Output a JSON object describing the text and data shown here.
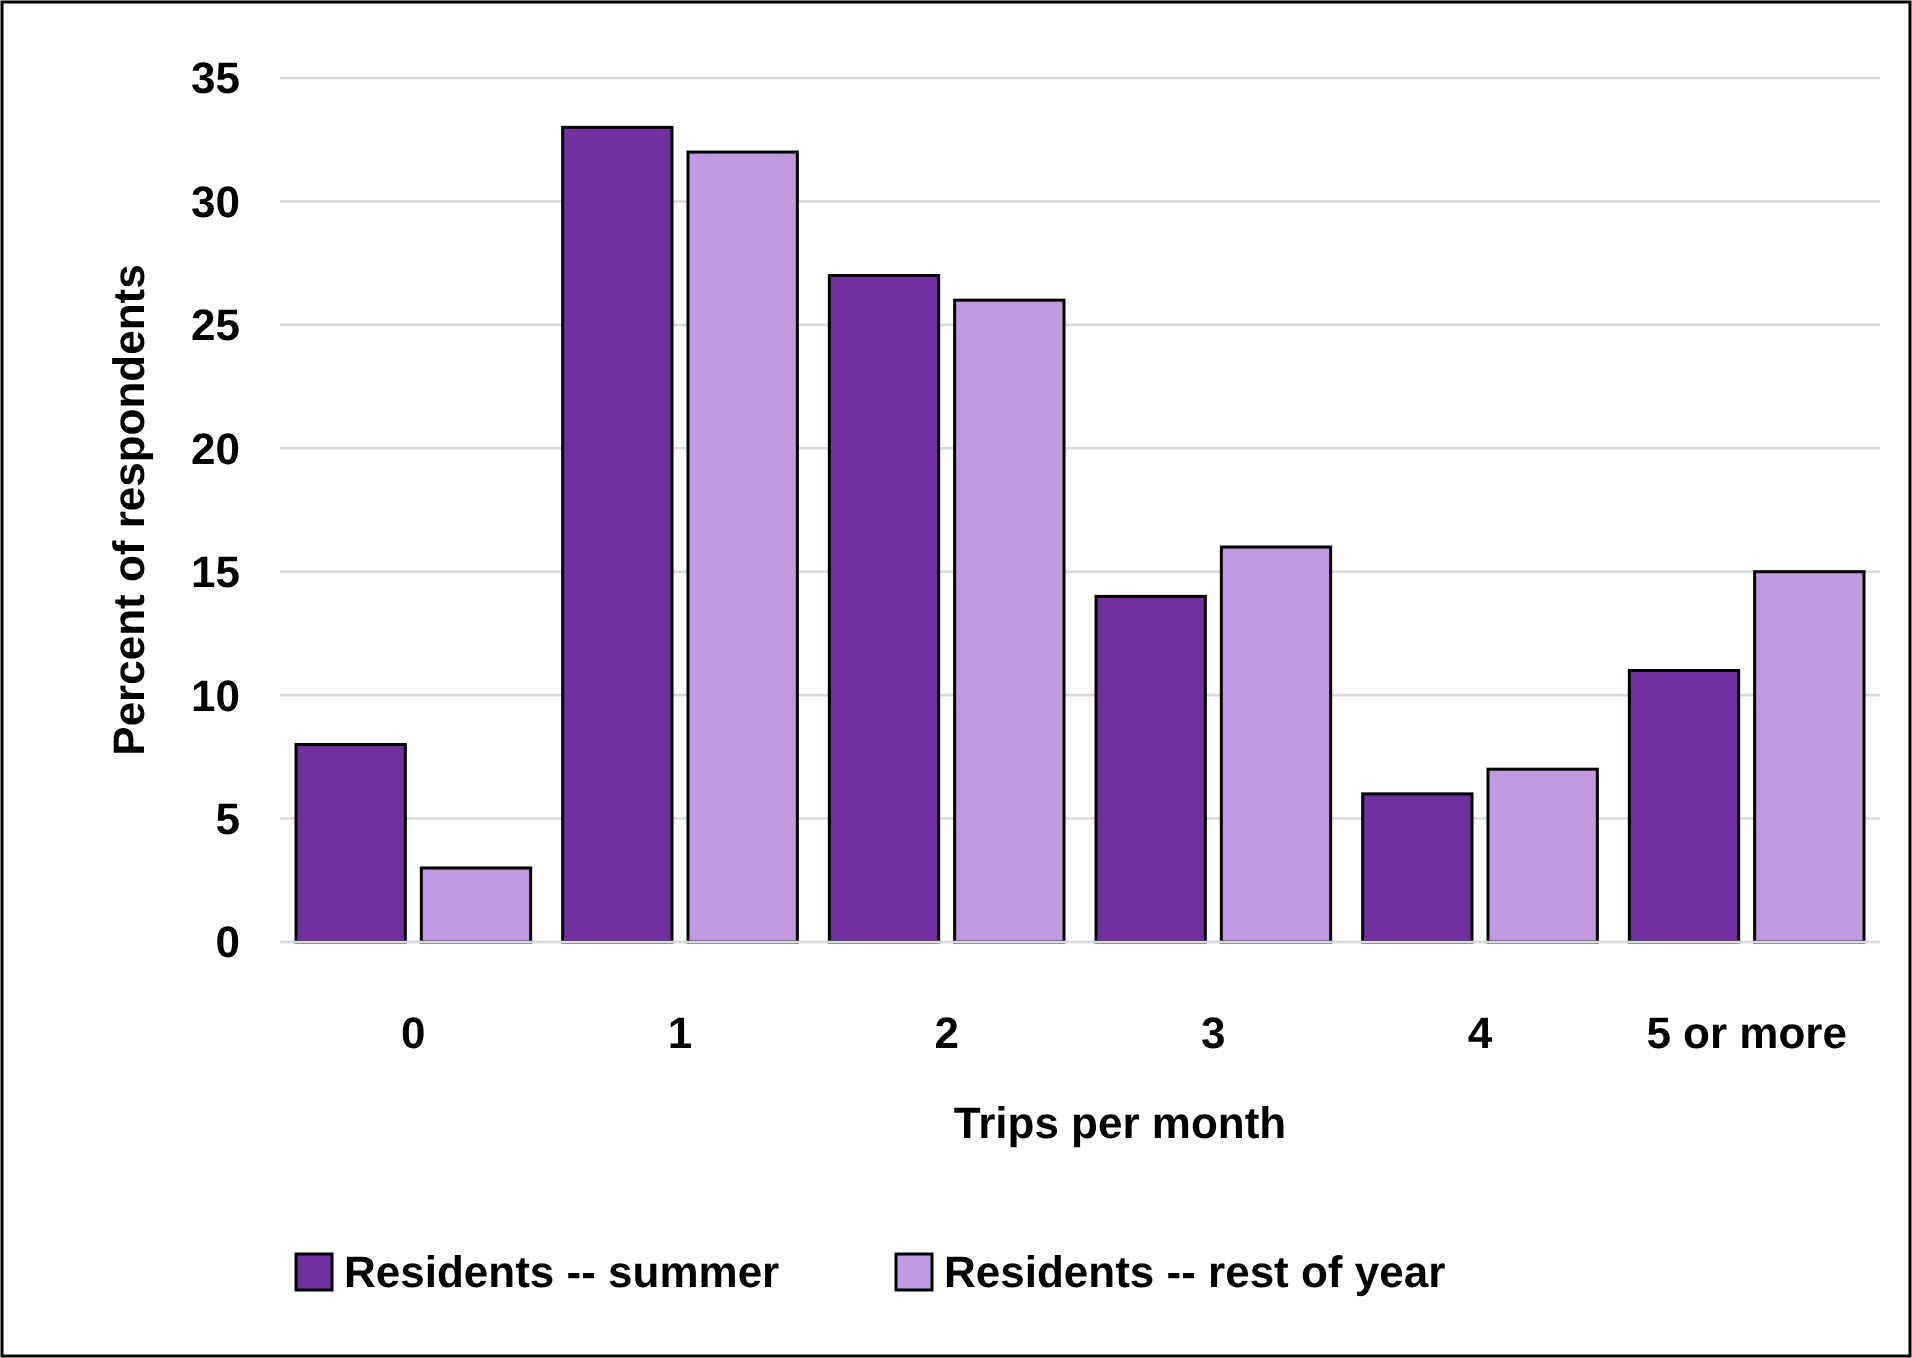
{
  "chart_data": {
    "type": "bar",
    "xlabel": "Trips per month",
    "ylabel": "Percent of respondents",
    "categories": [
      "0",
      "1",
      "2",
      "3",
      "4",
      "5 or more"
    ],
    "series": [
      {
        "name": "Residents -- summer",
        "color": "#7030a0",
        "values": [
          8,
          33,
          27,
          14,
          6,
          11
        ]
      },
      {
        "name": "Residents -- rest of year",
        "color": "#c09ae0",
        "values": [
          3,
          32,
          26,
          16,
          7,
          15
        ]
      }
    ],
    "ylim": [
      0,
      35
    ],
    "yticks": [
      0,
      5,
      10,
      15,
      20,
      25,
      30,
      35
    ],
    "grid": "y",
    "legend": "bottom"
  }
}
